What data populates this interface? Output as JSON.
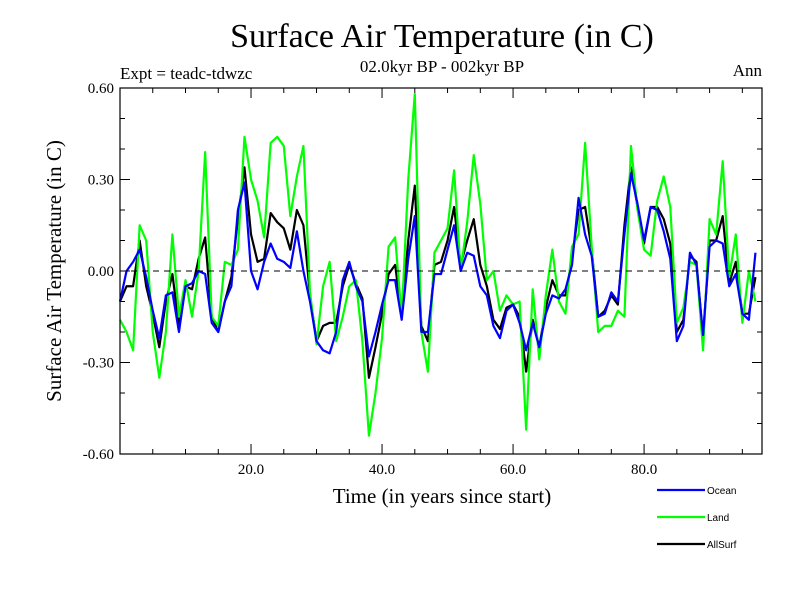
{
  "chart_data": {
    "type": "line",
    "title": "Surface Air Temperature (in C)",
    "subtitle": "02.0kyr BP - 002kyr BP",
    "expt_label": "Expt = teadc-tdwzc",
    "period_label": "Ann",
    "xlabel": "Time (in years since start)",
    "ylabel": "Surface Air Temperature (in C)",
    "xlim": [
      0,
      98
    ],
    "ylim": [
      -0.6,
      0.6
    ],
    "x_ticks": [
      20,
      40,
      60,
      80
    ],
    "x_tick_labels": [
      "20.0",
      "40.0",
      "60.0",
      "80.0"
    ],
    "y_ticks": [
      -0.6,
      -0.3,
      0.0,
      0.3,
      0.6
    ],
    "y_tick_labels": [
      "-0.60",
      "-0.30",
      "0.00",
      "0.30",
      "0.60"
    ],
    "zero_line": true,
    "legend_position": "bottom-right",
    "series": [
      {
        "name": "Ocean",
        "color": "#0000ff",
        "values": [
          -0.1,
          -0.0,
          0.03,
          0.07,
          -0.02,
          -0.13,
          -0.22,
          -0.08,
          -0.07,
          -0.2,
          -0.05,
          -0.04,
          0.0,
          -0.01,
          -0.17,
          -0.2,
          -0.1,
          -0.05,
          0.2,
          0.29,
          0.0,
          -0.06,
          0.03,
          0.09,
          0.04,
          0.03,
          0.01,
          0.13,
          0.0,
          -0.1,
          -0.23,
          -0.26,
          -0.27,
          -0.2,
          -0.03,
          0.03,
          -0.05,
          -0.1,
          -0.28,
          -0.2,
          -0.11,
          -0.03,
          -0.03,
          -0.16,
          0.04,
          0.18,
          -0.2,
          -0.2,
          -0.01,
          -0.01,
          0.07,
          0.15,
          0.0,
          0.06,
          0.05,
          -0.05,
          -0.08,
          -0.18,
          -0.22,
          -0.13,
          -0.11,
          -0.17,
          -0.26,
          -0.17,
          -0.25,
          -0.14,
          -0.08,
          -0.09,
          -0.06,
          0.02,
          0.24,
          0.12,
          0.05,
          -0.15,
          -0.14,
          -0.07,
          -0.1,
          0.12,
          0.32,
          0.22,
          0.1,
          0.21,
          0.2,
          0.13,
          0.04,
          -0.23,
          -0.18,
          0.06,
          0.02,
          -0.21,
          0.08,
          0.1,
          0.09,
          -0.05,
          -0.01,
          -0.14,
          -0.16,
          0.06
        ]
      },
      {
        "name": "Land",
        "color": "#00ff00",
        "values": [
          -0.16,
          -0.2,
          -0.26,
          0.15,
          0.1,
          -0.2,
          -0.35,
          -0.2,
          0.12,
          -0.15,
          -0.03,
          -0.15,
          0.0,
          0.39,
          -0.15,
          -0.18,
          0.03,
          0.02,
          0.07,
          0.44,
          0.3,
          0.23,
          0.11,
          0.42,
          0.44,
          0.41,
          0.18,
          0.31,
          0.41,
          -0.07,
          -0.24,
          -0.05,
          0.03,
          -0.23,
          -0.15,
          -0.05,
          -0.03,
          -0.23,
          -0.54,
          -0.4,
          -0.22,
          0.08,
          0.11,
          -0.15,
          0.3,
          0.58,
          -0.2,
          -0.33,
          0.06,
          0.1,
          0.14,
          0.33,
          0.0,
          0.16,
          0.38,
          0.22,
          -0.03,
          0.0,
          -0.13,
          -0.08,
          -0.11,
          -0.1,
          -0.52,
          -0.06,
          -0.29,
          -0.08,
          0.07,
          -0.1,
          -0.14,
          0.08,
          0.12,
          0.42,
          0.08,
          -0.2,
          -0.18,
          -0.18,
          -0.13,
          -0.15,
          0.41,
          0.2,
          0.07,
          0.05,
          0.23,
          0.31,
          0.21,
          -0.17,
          -0.12,
          0.03,
          0.02,
          -0.26,
          0.17,
          0.12,
          0.36,
          -0.02,
          0.12,
          -0.17,
          0.0,
          -0.1
        ]
      },
      {
        "name": "AllSurf",
        "color": "#000000",
        "values": [
          -0.1,
          -0.05,
          -0.05,
          0.1,
          -0.05,
          -0.14,
          -0.25,
          -0.1,
          -0.01,
          -0.18,
          -0.05,
          -0.06,
          0.04,
          0.11,
          -0.15,
          -0.2,
          -0.1,
          -0.02,
          0.17,
          0.34,
          0.12,
          0.03,
          0.04,
          0.19,
          0.16,
          0.14,
          0.07,
          0.2,
          0.15,
          -0.08,
          -0.23,
          -0.18,
          -0.17,
          -0.17,
          -0.05,
          0.02,
          -0.04,
          -0.09,
          -0.35,
          -0.25,
          -0.14,
          -0.01,
          0.02,
          -0.15,
          0.1,
          0.28,
          -0.18,
          -0.23,
          0.02,
          0.03,
          0.1,
          0.21,
          0.02,
          0.1,
          0.17,
          0.02,
          -0.05,
          -0.16,
          -0.19,
          -0.12,
          -0.11,
          -0.15,
          -0.33,
          -0.16,
          -0.25,
          -0.12,
          -0.03,
          -0.08,
          -0.08,
          0.04,
          0.2,
          0.21,
          0.07,
          -0.15,
          -0.13,
          -0.08,
          -0.11,
          0.15,
          0.34,
          0.21,
          0.09,
          0.21,
          0.21,
          0.17,
          0.09,
          -0.2,
          -0.16,
          0.05,
          0.03,
          -0.22,
          0.1,
          0.1,
          0.18,
          -0.04,
          0.03,
          -0.14,
          -0.14,
          -0.02
        ]
      }
    ]
  }
}
